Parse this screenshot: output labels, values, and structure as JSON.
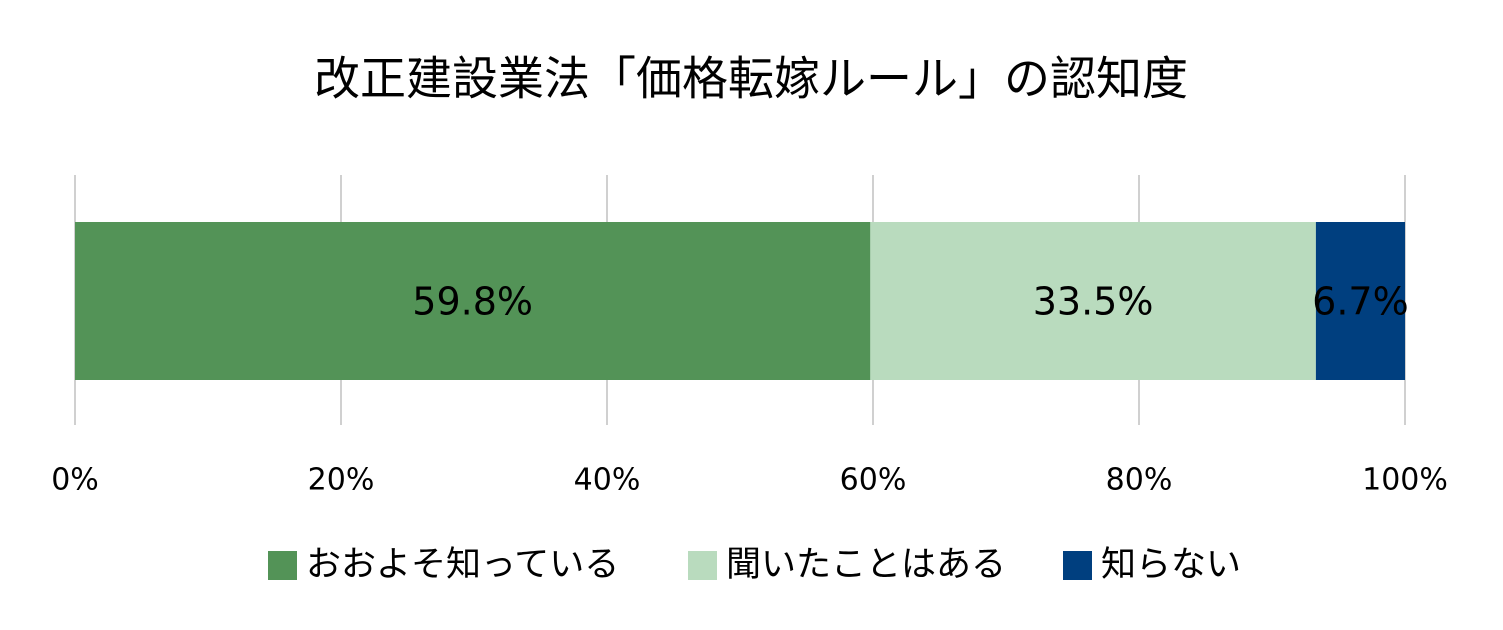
{
  "chart_data": {
    "type": "stacked-bar-horizontal",
    "title": "改正建設業法「価格転嫁ルール」の認知度",
    "categories": [
      null
    ],
    "series": [
      {
        "name": "おおよそ知っている",
        "color": "#539357",
        "label_color": "#ffffff",
        "values": [
          59.8
        ],
        "value_labels": [
          "59.8%"
        ]
      },
      {
        "name": "聞いたことはある",
        "color": "#b9dbbe",
        "label_color": "#000000",
        "values": [
          33.5
        ],
        "value_labels": [
          "33.5%"
        ]
      },
      {
        "name": "知らない",
        "color": "#003f7f",
        "label_color": "#ffffff",
        "values": [
          6.7
        ],
        "value_labels": [
          "6.7%"
        ]
      }
    ],
    "xlim": [
      0,
      100
    ],
    "xticks": [
      {
        "value": 0,
        "label": "0%"
      },
      {
        "value": 20,
        "label": "20%"
      },
      {
        "value": 40,
        "label": "40%"
      },
      {
        "value": 60,
        "label": "60%"
      },
      {
        "value": 80,
        "label": "80%"
      },
      {
        "value": 100,
        "label": "100%"
      }
    ],
    "grid": true,
    "legend": "bottom"
  }
}
